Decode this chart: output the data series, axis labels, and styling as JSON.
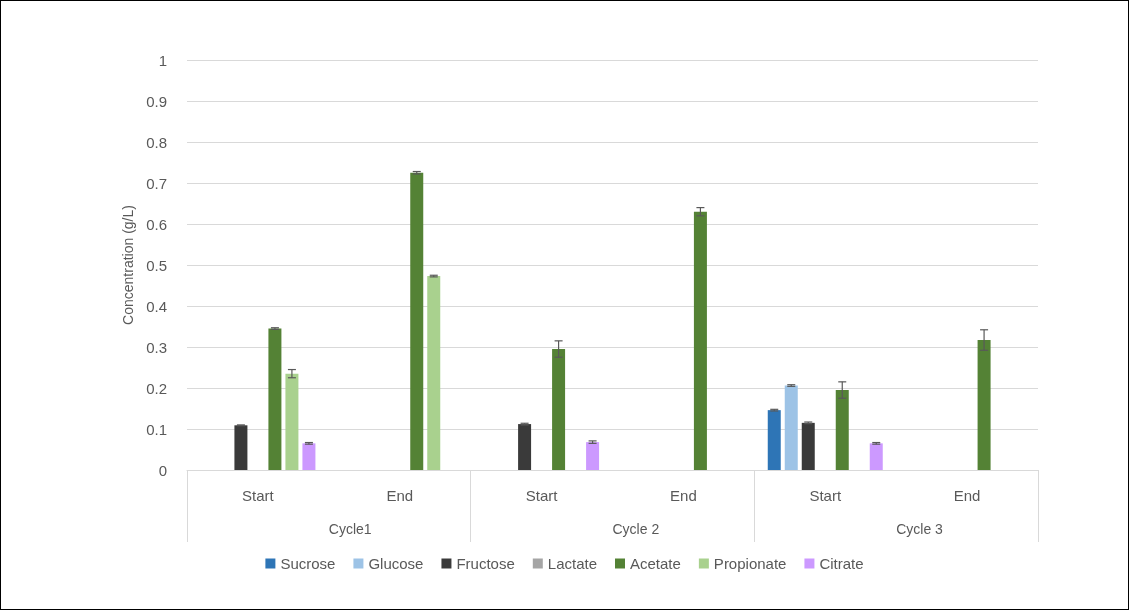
{
  "chart_data": {
    "type": "bar",
    "ylabel": "Concentration (g/L)",
    "categories": [
      "Start",
      "End",
      "Start",
      "End",
      "Start",
      "End"
    ],
    "annotations": [
      "Cycle1",
      "Cycle 2",
      "Cycle 3"
    ],
    "series": [
      {
        "name": "Sucrose",
        "color": "#2e75b6",
        "values": [
          null,
          null,
          null,
          null,
          0.146,
          null
        ],
        "errors": [
          null,
          null,
          null,
          null,
          0.002,
          null
        ]
      },
      {
        "name": "Glucose",
        "color": "#9dc3e6",
        "values": [
          null,
          null,
          null,
          null,
          0.206,
          null
        ],
        "errors": [
          null,
          null,
          null,
          null,
          0.002,
          null
        ]
      },
      {
        "name": "Fructose",
        "color": "#3a3a3a",
        "values": [
          0.109,
          null,
          0.112,
          null,
          0.115,
          null
        ],
        "errors": [
          0.001,
          null,
          0.002,
          null,
          0.002,
          null
        ]
      },
      {
        "name": "Lactate",
        "color": "#a5a5a5",
        "values": [
          null,
          null,
          null,
          null,
          null,
          null
        ]
      },
      {
        "name": "Acetate",
        "color": "#548235",
        "values": [
          0.345,
          0.725,
          0.295,
          0.63,
          0.195,
          0.317
        ],
        "errors": [
          0.002,
          0.003,
          0.02,
          0.01,
          0.02,
          0.025
        ]
      },
      {
        "name": "Propionate",
        "color": "#a9d18e",
        "values": [
          0.235,
          0.473,
          null,
          null,
          null,
          null
        ],
        "errors": [
          0.01,
          0.002,
          null,
          null,
          null,
          null
        ]
      },
      {
        "name": "Citrate",
        "color": "#cc99ff",
        "values": [
          0.065,
          null,
          0.068,
          null,
          0.065,
          null
        ],
        "errors": [
          0.002,
          null,
          0.003,
          null,
          0.002,
          null
        ]
      }
    ],
    "ylim": [
      0,
      1
    ],
    "yticks": [
      0,
      0.1,
      0.2,
      0.3,
      0.4,
      0.5,
      0.6,
      0.7,
      0.8,
      0.9,
      1
    ],
    "grid": "y",
    "legend": "bottom"
  }
}
